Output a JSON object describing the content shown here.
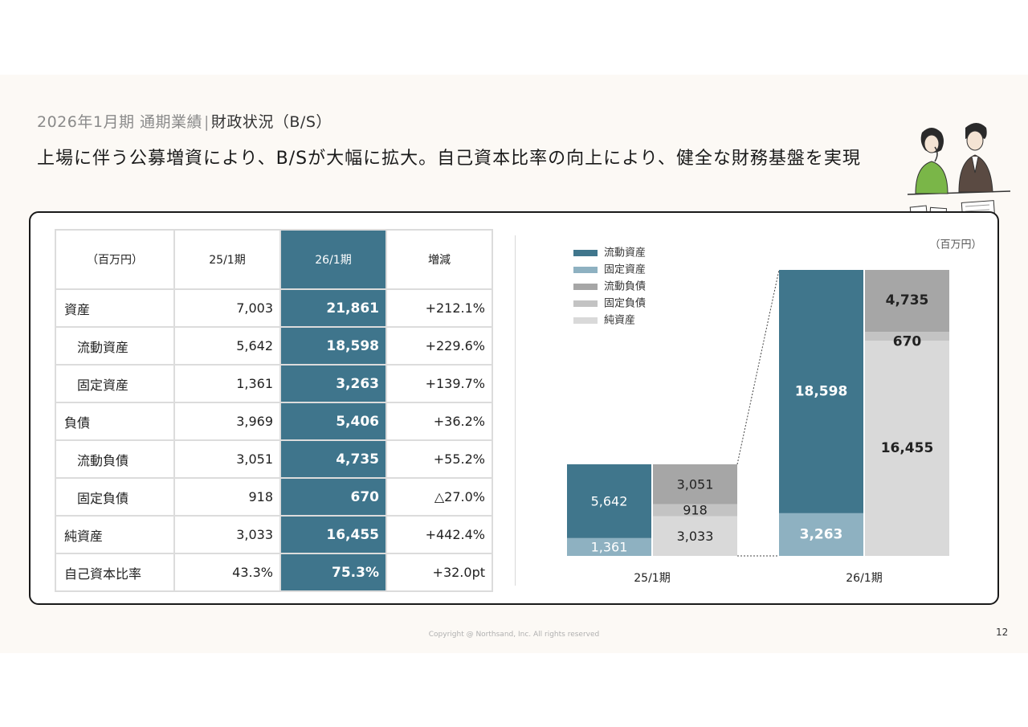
{
  "header": {
    "title_prefix": "2026年1月期 通期業績",
    "title_sep": "|",
    "title_main": "財政状況（B/S）",
    "headline": "上場に伴う公募増資により、B/Sが大幅に拡大。自己資本比率の向上により、健全な財務基盤を実現"
  },
  "table": {
    "headers": [
      "（百万円）",
      "25/1期",
      "26/1期",
      "増減"
    ],
    "rows": [
      {
        "label": "資産",
        "prev": "7,003",
        "curr": "21,861",
        "diff": "+212.1%"
      },
      {
        "label": "流動資産",
        "prev": "5,642",
        "curr": "18,598",
        "diff": "+229.6%"
      },
      {
        "label": "固定資産",
        "prev": "1,361",
        "curr": "3,263",
        "diff": "+139.7%"
      },
      {
        "label": "負債",
        "prev": "3,969",
        "curr": "5,406",
        "diff": "+36.2%"
      },
      {
        "label": "流動負債",
        "prev": "3,051",
        "curr": "4,735",
        "diff": "+55.2%"
      },
      {
        "label": "固定負債",
        "prev": "918",
        "curr": "670",
        "diff": "△27.0%"
      },
      {
        "label": "純資産",
        "prev": "3,033",
        "curr": "16,455",
        "diff": "+442.4%"
      },
      {
        "label": "自己資本比率",
        "prev": "43.3%",
        "curr": "75.3%",
        "diff": "+32.0pt"
      }
    ]
  },
  "chart_data": {
    "type": "bar",
    "unit_label": "（百万円）",
    "categories": [
      "25/1期",
      "26/1期"
    ],
    "legend": [
      {
        "name": "流動資産",
        "color": "#40768c"
      },
      {
        "name": "固定資産",
        "color": "#8eb1c1"
      },
      {
        "name": "流動負債",
        "color": "#a6a6a6"
      },
      {
        "name": "固定負債",
        "color": "#c3c3c3"
      },
      {
        "name": "純資産",
        "color": "#d9d9d9"
      }
    ],
    "assets_stack": [
      {
        "name": "流動資産",
        "values": [
          5642,
          18598
        ],
        "labels": [
          "5,642",
          "18,598"
        ]
      },
      {
        "name": "固定資産",
        "values": [
          1361,
          3263
        ],
        "labels": [
          "1,361",
          "3,263"
        ]
      }
    ],
    "liabilities_stack": [
      {
        "name": "流動負債",
        "values": [
          3051,
          4735
        ],
        "labels": [
          "3,051",
          "4,735"
        ]
      },
      {
        "name": "固定負債",
        "values": [
          918,
          670
        ],
        "labels": [
          "918",
          "670"
        ]
      },
      {
        "name": "純資産",
        "values": [
          3033,
          16455
        ],
        "labels": [
          "3,033",
          "16,455"
        ]
      }
    ],
    "totals": [
      7003,
      21861
    ]
  },
  "footer": {
    "copyright": "Copyright @ Northsand, Inc. All rights reserved",
    "page_number": "12"
  }
}
